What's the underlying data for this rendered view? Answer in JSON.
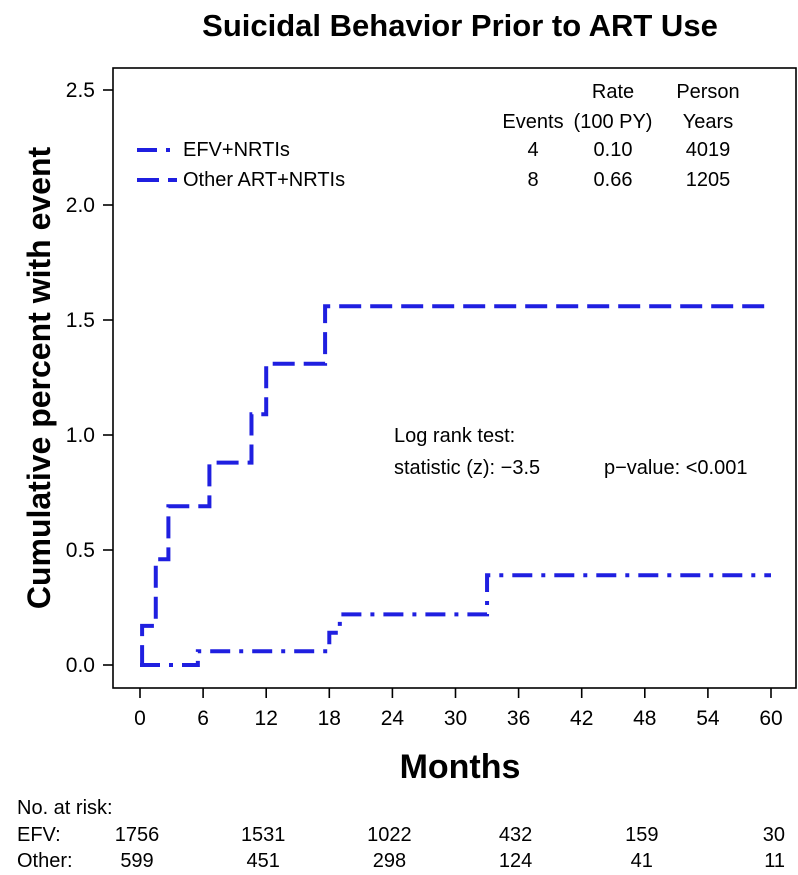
{
  "chart_data": {
    "type": "line",
    "step": true,
    "title": "Suicidal Behavior Prior to ART Use",
    "xlabel": "Months",
    "ylabel": "Cumulative percent with event",
    "xlim": [
      0,
      60
    ],
    "ylim": [
      0,
      2.5
    ],
    "x_ticks": [
      "0",
      "6",
      "12",
      "18",
      "24",
      "30",
      "36",
      "42",
      "48",
      "54",
      "60"
    ],
    "y_ticks": [
      "0.0",
      "0.5",
      "1.0",
      "1.5",
      "2.0",
      "2.5"
    ],
    "grid": false,
    "legend_position": "top-left",
    "series": [
      {
        "name": "EFV+NRTIs",
        "style": "dash-dot",
        "color": "#1f1fe0",
        "steps": [
          [
            0,
            0
          ],
          [
            5.5,
            0.06
          ],
          [
            18,
            0.14
          ],
          [
            19,
            0.22
          ],
          [
            33,
            0.39
          ],
          [
            60,
            0.39
          ]
        ]
      },
      {
        "name": "Other ART+NRTIs",
        "style": "dashed",
        "color": "#1f1fe0",
        "steps": [
          [
            0,
            0
          ],
          [
            0.2,
            0.17
          ],
          [
            1.5,
            0.46
          ],
          [
            2.7,
            0.69
          ],
          [
            6.6,
            0.88
          ],
          [
            10.6,
            1.09
          ],
          [
            12,
            1.31
          ],
          [
            17.6,
            1.56
          ],
          [
            60,
            1.56
          ]
        ]
      }
    ],
    "legend_table": {
      "headers": {
        "events": "Events",
        "rate_line1": "Rate",
        "rate_line2": "(100 PY)",
        "person_line1": "Person",
        "person_line2": "Years"
      },
      "rows": [
        {
          "events": "4",
          "rate": "0.10",
          "person_years": "4019"
        },
        {
          "events": "8",
          "rate": "0.66",
          "person_years": "1205"
        }
      ]
    },
    "annotation": {
      "line1": "Log rank test:",
      "statistic": "statistic (z): −3.5",
      "pvalue": "p−value: <0.001"
    },
    "at_risk": {
      "heading": "No. at risk:",
      "months": [
        0,
        12,
        24,
        36,
        48,
        60
      ],
      "rows": [
        {
          "label": "EFV:",
          "values": [
            "1756",
            "1531",
            "1022",
            "432",
            "159",
            "30"
          ]
        },
        {
          "label": "Other:",
          "values": [
            "599",
            "451",
            "298",
            "124",
            "41",
            "11"
          ]
        }
      ]
    }
  }
}
